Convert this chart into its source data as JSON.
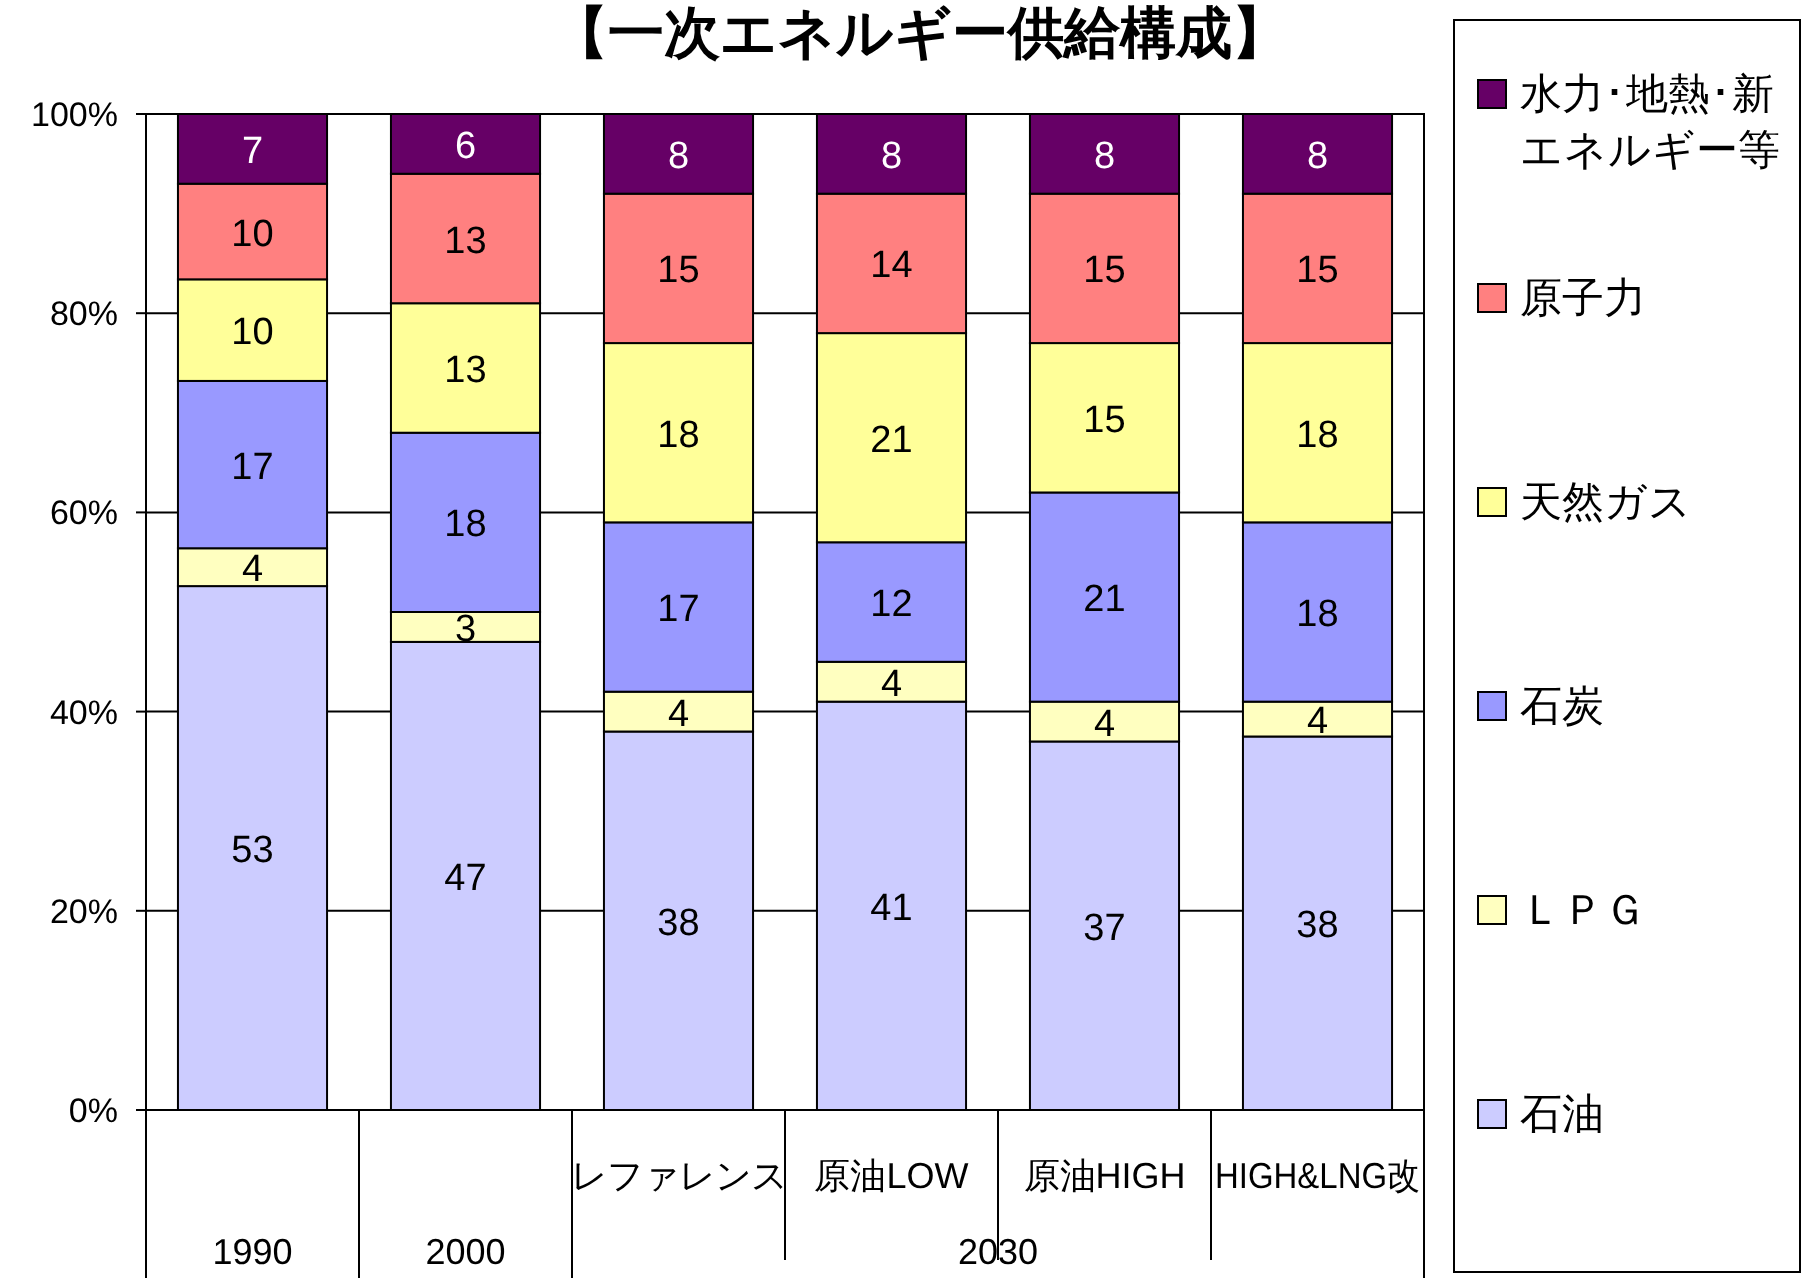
{
  "chart_data": {
    "type": "bar",
    "stacked": true,
    "title": "【一次エネルギー供給構成】",
    "categories": [
      null,
      null,
      "レファレンス",
      "原油LOW",
      "原油HIGH",
      "HIGH&LNG改"
    ],
    "annotations": [
      "1990",
      "2000",
      "2030"
    ],
    "series": [
      {
        "name": "石油",
        "color": "#ccccff",
        "values": [
          52.6,
          47,
          38,
          41,
          37,
          37.5
        ],
        "value_labels": [
          "53",
          "47",
          "38",
          "41",
          "37",
          "38"
        ]
      },
      {
        "name": "ＬＰＧ",
        "color": "#ffffc0",
        "values": [
          3.8,
          3,
          4,
          4,
          4,
          3.5
        ],
        "value_labels": [
          "4",
          "3",
          "4",
          "4",
          "4",
          "4"
        ]
      },
      {
        "name": "石炭",
        "color": "#9999ff",
        "values": [
          16.8,
          18,
          17,
          12,
          21,
          18
        ],
        "value_labels": [
          "17",
          "18",
          "17",
          "12",
          "21",
          "18"
        ]
      },
      {
        "name": "天然ガス",
        "color": "#ffff99",
        "values": [
          10.2,
          13,
          18,
          21,
          15,
          18
        ],
        "value_labels": [
          "10",
          "13",
          "18",
          "21",
          "15",
          "18"
        ]
      },
      {
        "name": "原子力",
        "color": "#ff8080",
        "values": [
          9.6,
          13,
          15,
          14,
          15,
          15
        ],
        "value_labels": [
          "10",
          "13",
          "15",
          "14",
          "15",
          "15"
        ]
      },
      {
        "name": "水力･地熱･新エネルギー等",
        "color": "#660066",
        "values": [
          7,
          6,
          8,
          8,
          8,
          8
        ],
        "value_labels": [
          "7",
          "6",
          "8",
          "8",
          "8",
          "8"
        ]
      }
    ],
    "ylim": [
      0,
      100
    ],
    "yticks": [
      {
        "value": 0,
        "label": "0%"
      },
      {
        "value": 20,
        "label": "20%"
      },
      {
        "value": 40,
        "label": "40%"
      },
      {
        "value": 60,
        "label": "60%"
      },
      {
        "value": 80,
        "label": "80%"
      },
      {
        "value": 100,
        "label": "100%"
      }
    ],
    "grid": "y",
    "legend": "right"
  }
}
